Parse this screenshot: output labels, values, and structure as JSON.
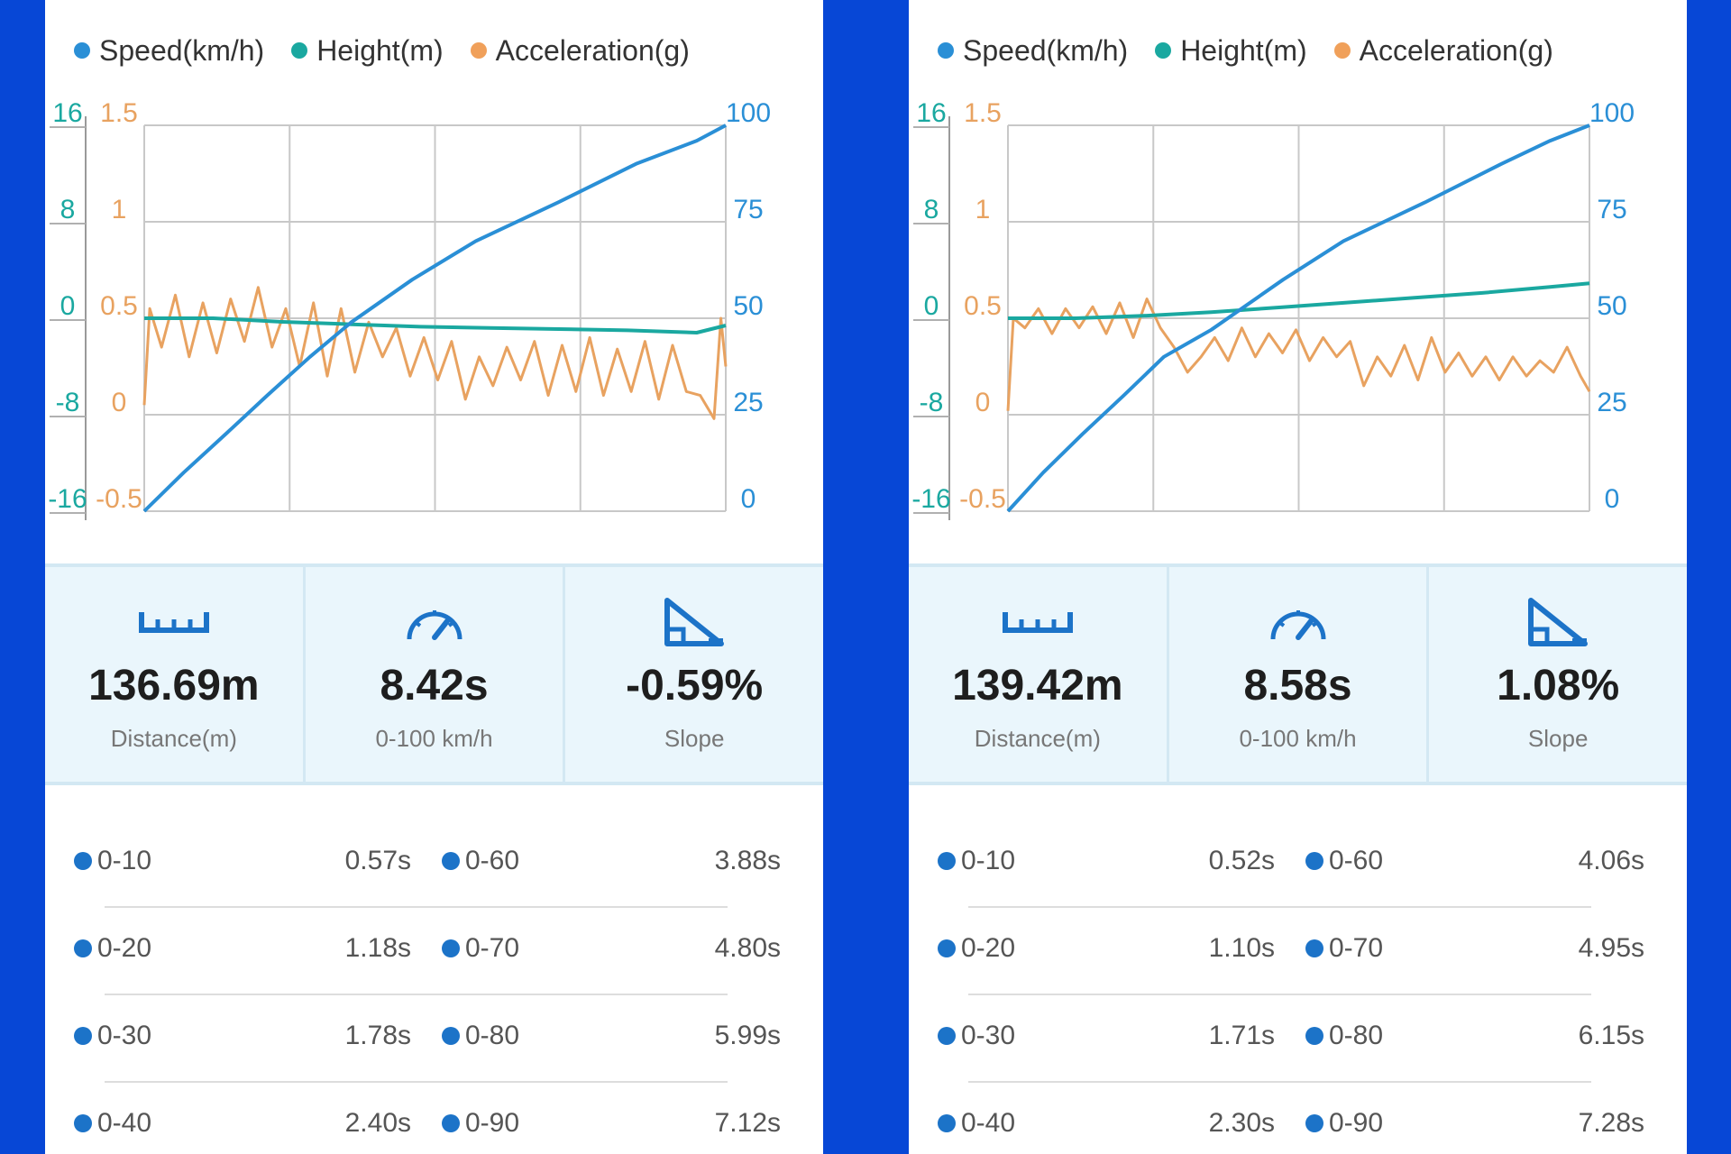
{
  "legend": [
    {
      "label": "Speed(km/h)",
      "color": "#2a8fd6"
    },
    {
      "label": "Height(m)",
      "color": "#1aa8a0"
    },
    {
      "label": "Acceleration(g)",
      "color": "#f0a05a"
    }
  ],
  "axes": {
    "height_ticks": [
      "16",
      "8",
      "0",
      "-8",
      "-16"
    ],
    "acc_ticks": [
      "1.5",
      "1",
      "0.5",
      "0",
      "-0.5"
    ],
    "speed_ticks": [
      "100",
      "75",
      "50",
      "25",
      "0"
    ]
  },
  "stat_labels": {
    "distance": "Distance(m)",
    "time": "0-100 km/h",
    "slope": "Slope"
  },
  "panels": [
    {
      "stats": {
        "distance": "136.69m",
        "time": "8.42s",
        "slope": "-0.59%"
      },
      "results": [
        {
          "l1": "0-10",
          "t1": "0.57s",
          "l2": "0-60",
          "t2": "3.88s"
        },
        {
          "l1": "0-20",
          "t1": "1.18s",
          "l2": "0-70",
          "t2": "4.80s"
        },
        {
          "l1": "0-30",
          "t1": "1.78s",
          "l2": "0-80",
          "t2": "5.99s"
        },
        {
          "l1": "0-40",
          "t1": "2.40s",
          "l2": "0-90",
          "t2": "7.12s"
        }
      ]
    },
    {
      "stats": {
        "distance": "139.42m",
        "time": "8.58s",
        "slope": "1.08%"
      },
      "results": [
        {
          "l1": "0-10",
          "t1": "0.52s",
          "l2": "0-60",
          "t2": "4.06s"
        },
        {
          "l1": "0-20",
          "t1": "1.10s",
          "l2": "0-70",
          "t2": "4.95s"
        },
        {
          "l1": "0-30",
          "t1": "1.71s",
          "l2": "0-80",
          "t2": "6.15s"
        },
        {
          "l1": "0-40",
          "t1": "2.30s",
          "l2": "0-90",
          "t2": "7.28s"
        }
      ]
    }
  ],
  "chart_data": [
    {
      "type": "line",
      "xlim": [
        0,
        8.42
      ],
      "y_axes": {
        "height_m": [
          -16,
          16
        ],
        "acceleration_g": [
          -0.5,
          1.5
        ],
        "speed_kmh": [
          0,
          100
        ]
      },
      "grid": true,
      "legend_position": "top",
      "series": [
        {
          "name": "Speed(km/h)",
          "axis": "speed_kmh",
          "x": [
            0,
            0.57,
            1.18,
            1.78,
            2.4,
            3.0,
            3.88,
            4.8,
            5.99,
            7.12,
            8.0,
            8.42
          ],
          "y": [
            0,
            10,
            20,
            30,
            40,
            49,
            60,
            70,
            80,
            90,
            96,
            100
          ]
        },
        {
          "name": "Height(m)",
          "axis": "height_m",
          "x": [
            0,
            1.0,
            2.0,
            3.0,
            4.0,
            5.0,
            6.0,
            7.0,
            8.0,
            8.42
          ],
          "y": [
            0.0,
            0.0,
            -0.3,
            -0.5,
            -0.7,
            -0.8,
            -0.9,
            -1.0,
            -1.2,
            -0.6
          ]
        },
        {
          "name": "Acceleration(g)",
          "axis": "acceleration_g",
          "x": [
            0,
            0.08,
            0.25,
            0.45,
            0.65,
            0.85,
            1.05,
            1.25,
            1.45,
            1.65,
            1.85,
            2.05,
            2.25,
            2.45,
            2.65,
            2.85,
            3.05,
            3.25,
            3.45,
            3.65,
            3.85,
            4.05,
            4.25,
            4.45,
            4.65,
            4.85,
            5.05,
            5.25,
            5.45,
            5.65,
            5.85,
            6.05,
            6.25,
            6.45,
            6.65,
            6.85,
            7.05,
            7.25,
            7.45,
            7.65,
            7.85,
            8.05,
            8.25,
            8.35,
            8.42
          ],
          "y": [
            0.05,
            0.55,
            0.35,
            0.62,
            0.3,
            0.58,
            0.32,
            0.6,
            0.38,
            0.66,
            0.35,
            0.55,
            0.25,
            0.58,
            0.2,
            0.55,
            0.22,
            0.48,
            0.3,
            0.45,
            0.2,
            0.4,
            0.18,
            0.38,
            0.08,
            0.3,
            0.15,
            0.35,
            0.18,
            0.38,
            0.1,
            0.36,
            0.12,
            0.4,
            0.1,
            0.34,
            0.12,
            0.38,
            0.08,
            0.36,
            0.12,
            0.1,
            -0.02,
            0.5,
            0.25
          ]
        }
      ]
    },
    {
      "type": "line",
      "xlim": [
        0,
        8.58
      ],
      "y_axes": {
        "height_m": [
          -16,
          16
        ],
        "acceleration_g": [
          -0.5,
          1.5
        ],
        "speed_kmh": [
          0,
          100
        ]
      },
      "grid": true,
      "legend_position": "top",
      "series": [
        {
          "name": "Speed(km/h)",
          "axis": "speed_kmh",
          "x": [
            0,
            0.52,
            1.1,
            1.71,
            2.3,
            3.0,
            4.06,
            4.95,
            6.15,
            7.28,
            8.0,
            8.58
          ],
          "y": [
            0,
            10,
            20,
            30,
            40,
            47,
            60,
            70,
            80,
            90,
            96,
            100
          ]
        },
        {
          "name": "Height(m)",
          "axis": "height_m",
          "x": [
            0,
            1.0,
            2.0,
            3.0,
            4.0,
            5.0,
            6.0,
            7.0,
            8.0,
            8.58
          ],
          "y": [
            0.0,
            0.0,
            0.2,
            0.5,
            0.9,
            1.3,
            1.7,
            2.1,
            2.6,
            2.9
          ]
        },
        {
          "name": "Acceleration(g)",
          "axis": "acceleration_g",
          "x": [
            0,
            0.08,
            0.25,
            0.45,
            0.65,
            0.85,
            1.05,
            1.25,
            1.45,
            1.65,
            1.85,
            2.05,
            2.25,
            2.45,
            2.65,
            2.85,
            3.05,
            3.25,
            3.45,
            3.65,
            3.85,
            4.05,
            4.25,
            4.45,
            4.65,
            4.85,
            5.05,
            5.25,
            5.45,
            5.65,
            5.85,
            6.05,
            6.25,
            6.45,
            6.65,
            6.85,
            7.05,
            7.25,
            7.45,
            7.65,
            7.85,
            8.05,
            8.25,
            8.45,
            8.58
          ],
          "y": [
            0.02,
            0.5,
            0.45,
            0.55,
            0.42,
            0.55,
            0.45,
            0.56,
            0.42,
            0.58,
            0.4,
            0.6,
            0.45,
            0.35,
            0.22,
            0.3,
            0.4,
            0.28,
            0.45,
            0.3,
            0.42,
            0.32,
            0.44,
            0.28,
            0.4,
            0.3,
            0.38,
            0.15,
            0.3,
            0.2,
            0.36,
            0.18,
            0.4,
            0.22,
            0.32,
            0.2,
            0.3,
            0.18,
            0.3,
            0.2,
            0.28,
            0.22,
            0.35,
            0.2,
            0.12
          ]
        }
      ]
    }
  ]
}
